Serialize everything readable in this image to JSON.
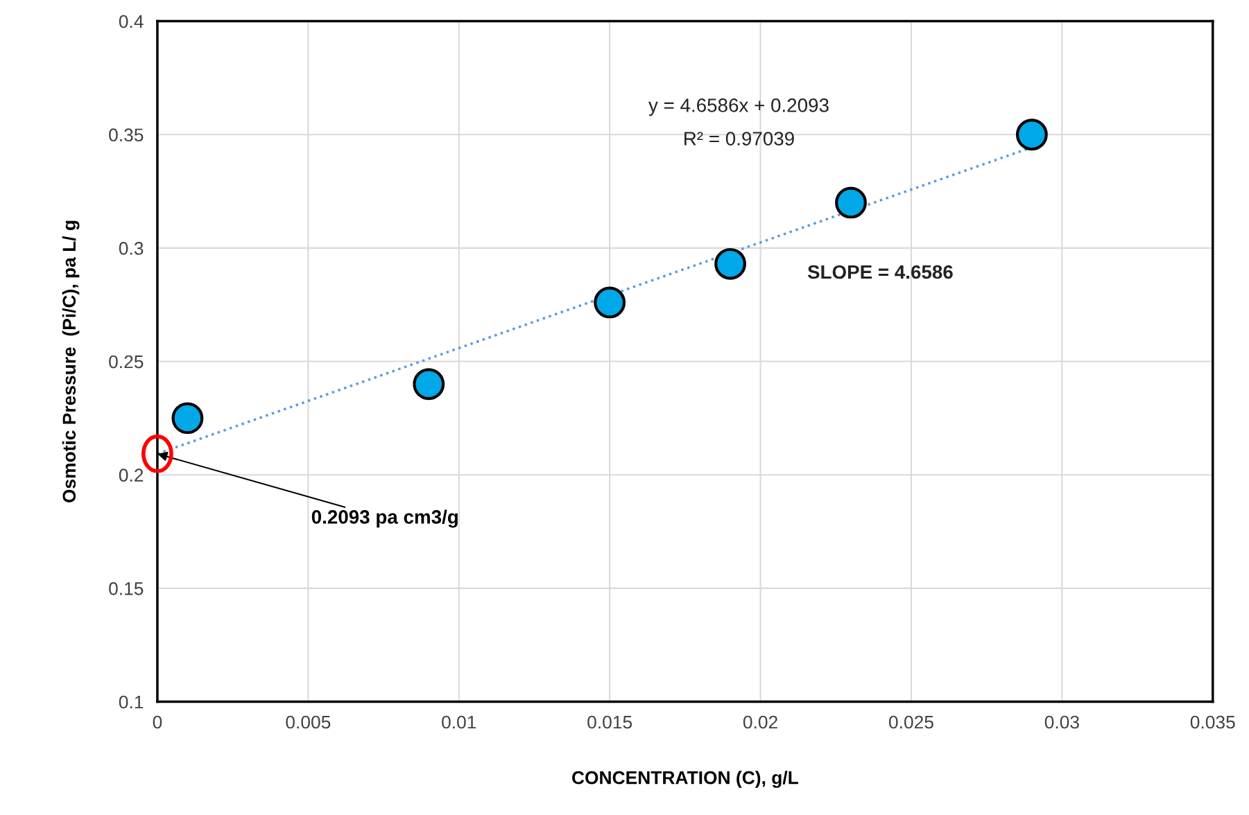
{
  "chart_data": {
    "type": "scatter",
    "xlabel": "CONCENTRATION (C), g/L",
    "ylabel": "Osmotic Pressure  (Pi/C), pa L/ g",
    "series": [
      {
        "color": "#00a8e8",
        "marker": "circle",
        "x": [
          0.001,
          0.009,
          0.015,
          0.019,
          0.023,
          0.029
        ],
        "values": [
          0.225,
          0.24,
          0.276,
          0.293,
          0.32,
          0.35
        ]
      },
      {
        "type": "line",
        "color": "#5b9bd5",
        "line_style": "dotted",
        "marker": "none",
        "x": [
          0,
          0.029
        ],
        "values": [
          0.2093,
          0.3444
        ]
      }
    ],
    "xlim": [
      0,
      0.035
    ],
    "xticks": [
      0,
      0.005,
      0.01,
      0.015,
      0.02,
      0.025,
      0.03,
      0.035
    ],
    "ylim": [
      0.1,
      0.4
    ],
    "yticks": [
      0.1,
      0.15,
      0.2,
      0.25,
      0.3,
      0.35,
      0.4
    ],
    "grid": true,
    "legend": false,
    "annotations": [
      "y = 4.6586x + 0.2093",
      "R² = 0.97039",
      "SLOPE = 4.6586",
      {
        "text": "0.2093 pa cm3/g",
        "x": 0,
        "y": 0.2093
      }
    ]
  }
}
